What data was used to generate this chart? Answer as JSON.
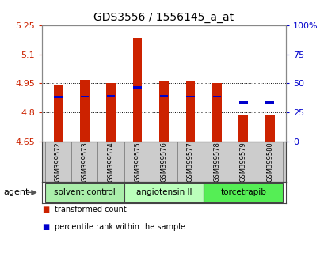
{
  "title": "GDS3556 / 1556145_a_at",
  "samples": [
    "GSM399572",
    "GSM399573",
    "GSM399574",
    "GSM399575",
    "GSM399576",
    "GSM399577",
    "GSM399578",
    "GSM399579",
    "GSM399580"
  ],
  "bar_values": [
    4.94,
    4.967,
    4.952,
    5.185,
    4.96,
    4.96,
    4.952,
    4.785,
    4.785
  ],
  "bar_base": 4.65,
  "percentile_values": [
    4.88,
    4.882,
    4.883,
    4.928,
    4.883,
    4.882,
    4.882,
    4.852,
    4.852
  ],
  "ylim_left": [
    4.65,
    5.25
  ],
  "ylim_right": [
    0,
    100
  ],
  "yticks_left": [
    4.65,
    4.8,
    4.95,
    5.1,
    5.25
  ],
  "yticks_right": [
    0,
    25,
    50,
    75,
    100
  ],
  "ytick_labels_left": [
    "4.65",
    "4.8",
    "4.95",
    "5.1",
    "5.25"
  ],
  "ytick_labels_right": [
    "0",
    "25",
    "50",
    "75",
    "100%"
  ],
  "bar_color": "#cc2200",
  "percentile_color": "#0000cc",
  "left_axis_color": "#cc2200",
  "right_axis_color": "#0000cc",
  "plot_bg": "#ffffff",
  "label_bg": "#cccccc",
  "groups": [
    {
      "label": "solvent control",
      "indices": [
        0,
        1,
        2
      ],
      "color": "#aaeeaa"
    },
    {
      "label": "angiotensin II",
      "indices": [
        3,
        4,
        5
      ],
      "color": "#bbffbb"
    },
    {
      "label": "torcetrapib",
      "indices": [
        6,
        7,
        8
      ],
      "color": "#55ee55"
    }
  ],
  "agent_label": "agent",
  "legend_items": [
    {
      "label": "transformed count",
      "color": "#cc2200"
    },
    {
      "label": "percentile rank within the sample",
      "color": "#0000cc"
    }
  ],
  "bar_width": 0.35,
  "fig_width": 4.1,
  "fig_height": 3.54,
  "fig_dpi": 100
}
